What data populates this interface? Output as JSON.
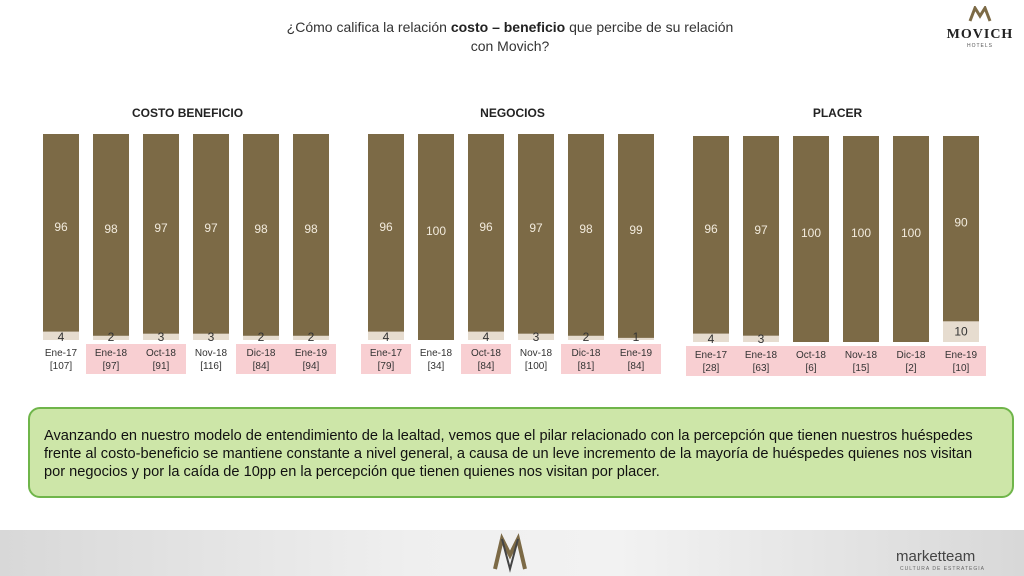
{
  "header": {
    "title_pre": "¿Cómo califica la relación ",
    "title_bold": "costo – beneficio",
    "title_post": " que percibe de su relación",
    "title_line2": "con Movich?"
  },
  "logo": {
    "name": "MOVICH",
    "sub": "HOTELS"
  },
  "colors": {
    "main": "#7c6a46",
    "secondary": "#e6dccf",
    "highlight": "#f8cfd2"
  },
  "chart_data": [
    {
      "type": "bar",
      "title": "COSTO BENEFICIO",
      "categories": [
        "Ene-17",
        "Ene-18",
        "Oct-18",
        "Nov-18",
        "Dic-18",
        "Ene-19"
      ],
      "bases": [
        "[107]",
        "[97]",
        "[91]",
        "[116]",
        "[84]",
        "[94]"
      ],
      "highlighted": [
        false,
        true,
        true,
        false,
        true,
        true
      ],
      "series": [
        {
          "values": [
            96,
            98,
            97,
            97,
            98,
            98
          ]
        },
        {
          "values": [
            4,
            2,
            3,
            3,
            2,
            2
          ]
        }
      ],
      "stacked": true,
      "ylim": [
        0,
        100
      ]
    },
    {
      "type": "bar",
      "title": "NEGOCIOS",
      "categories": [
        "Ene-17",
        "Ene-18",
        "Oct-18",
        "Nov-18",
        "Dic-18",
        "Ene-19"
      ],
      "bases": [
        "[79]",
        "[34]",
        "[84]",
        "[100]",
        "[81]",
        "[84]"
      ],
      "highlighted": [
        true,
        false,
        true,
        false,
        true,
        true
      ],
      "series": [
        {
          "values": [
            96,
            100,
            96,
            97,
            98,
            99
          ]
        },
        {
          "values": [
            4,
            0,
            4,
            3,
            2,
            1
          ]
        }
      ],
      "stacked": true,
      "ylim": [
        0,
        100
      ]
    },
    {
      "type": "bar",
      "title": "PLACER",
      "categories": [
        "Ene-17",
        "Ene-18",
        "Oct-18",
        "Nov-18",
        "Dic-18",
        "Ene-19"
      ],
      "bases": [
        "[28]",
        "[63]",
        "[6]",
        "[15]",
        "[2]",
        "[10]"
      ],
      "highlighted": [
        true,
        true,
        true,
        true,
        true,
        true
      ],
      "series": [
        {
          "values": [
            96,
            97,
            100,
            100,
            100,
            90
          ]
        },
        {
          "values": [
            4,
            3,
            0,
            0,
            0,
            10
          ]
        }
      ],
      "stacked": true,
      "ylim": [
        0,
        100
      ]
    }
  ],
  "callout": {
    "text": "Avanzando en nuestro modelo de entendimiento de la lealtad, vemos que el pilar relacionado con la percepción que tienen nuestros huéspedes frente al costo-beneficio se mantiene constante a nivel general, a causa de un leve incremento de la mayoría de huéspedes quienes nos visitan por negocios y por la caída de 10pp en la percepción que tienen quienes nos visitan por placer."
  },
  "footer": {
    "brand": "marketteam",
    "brand_sub": "CULTURA DE ESTRATEGIA"
  }
}
